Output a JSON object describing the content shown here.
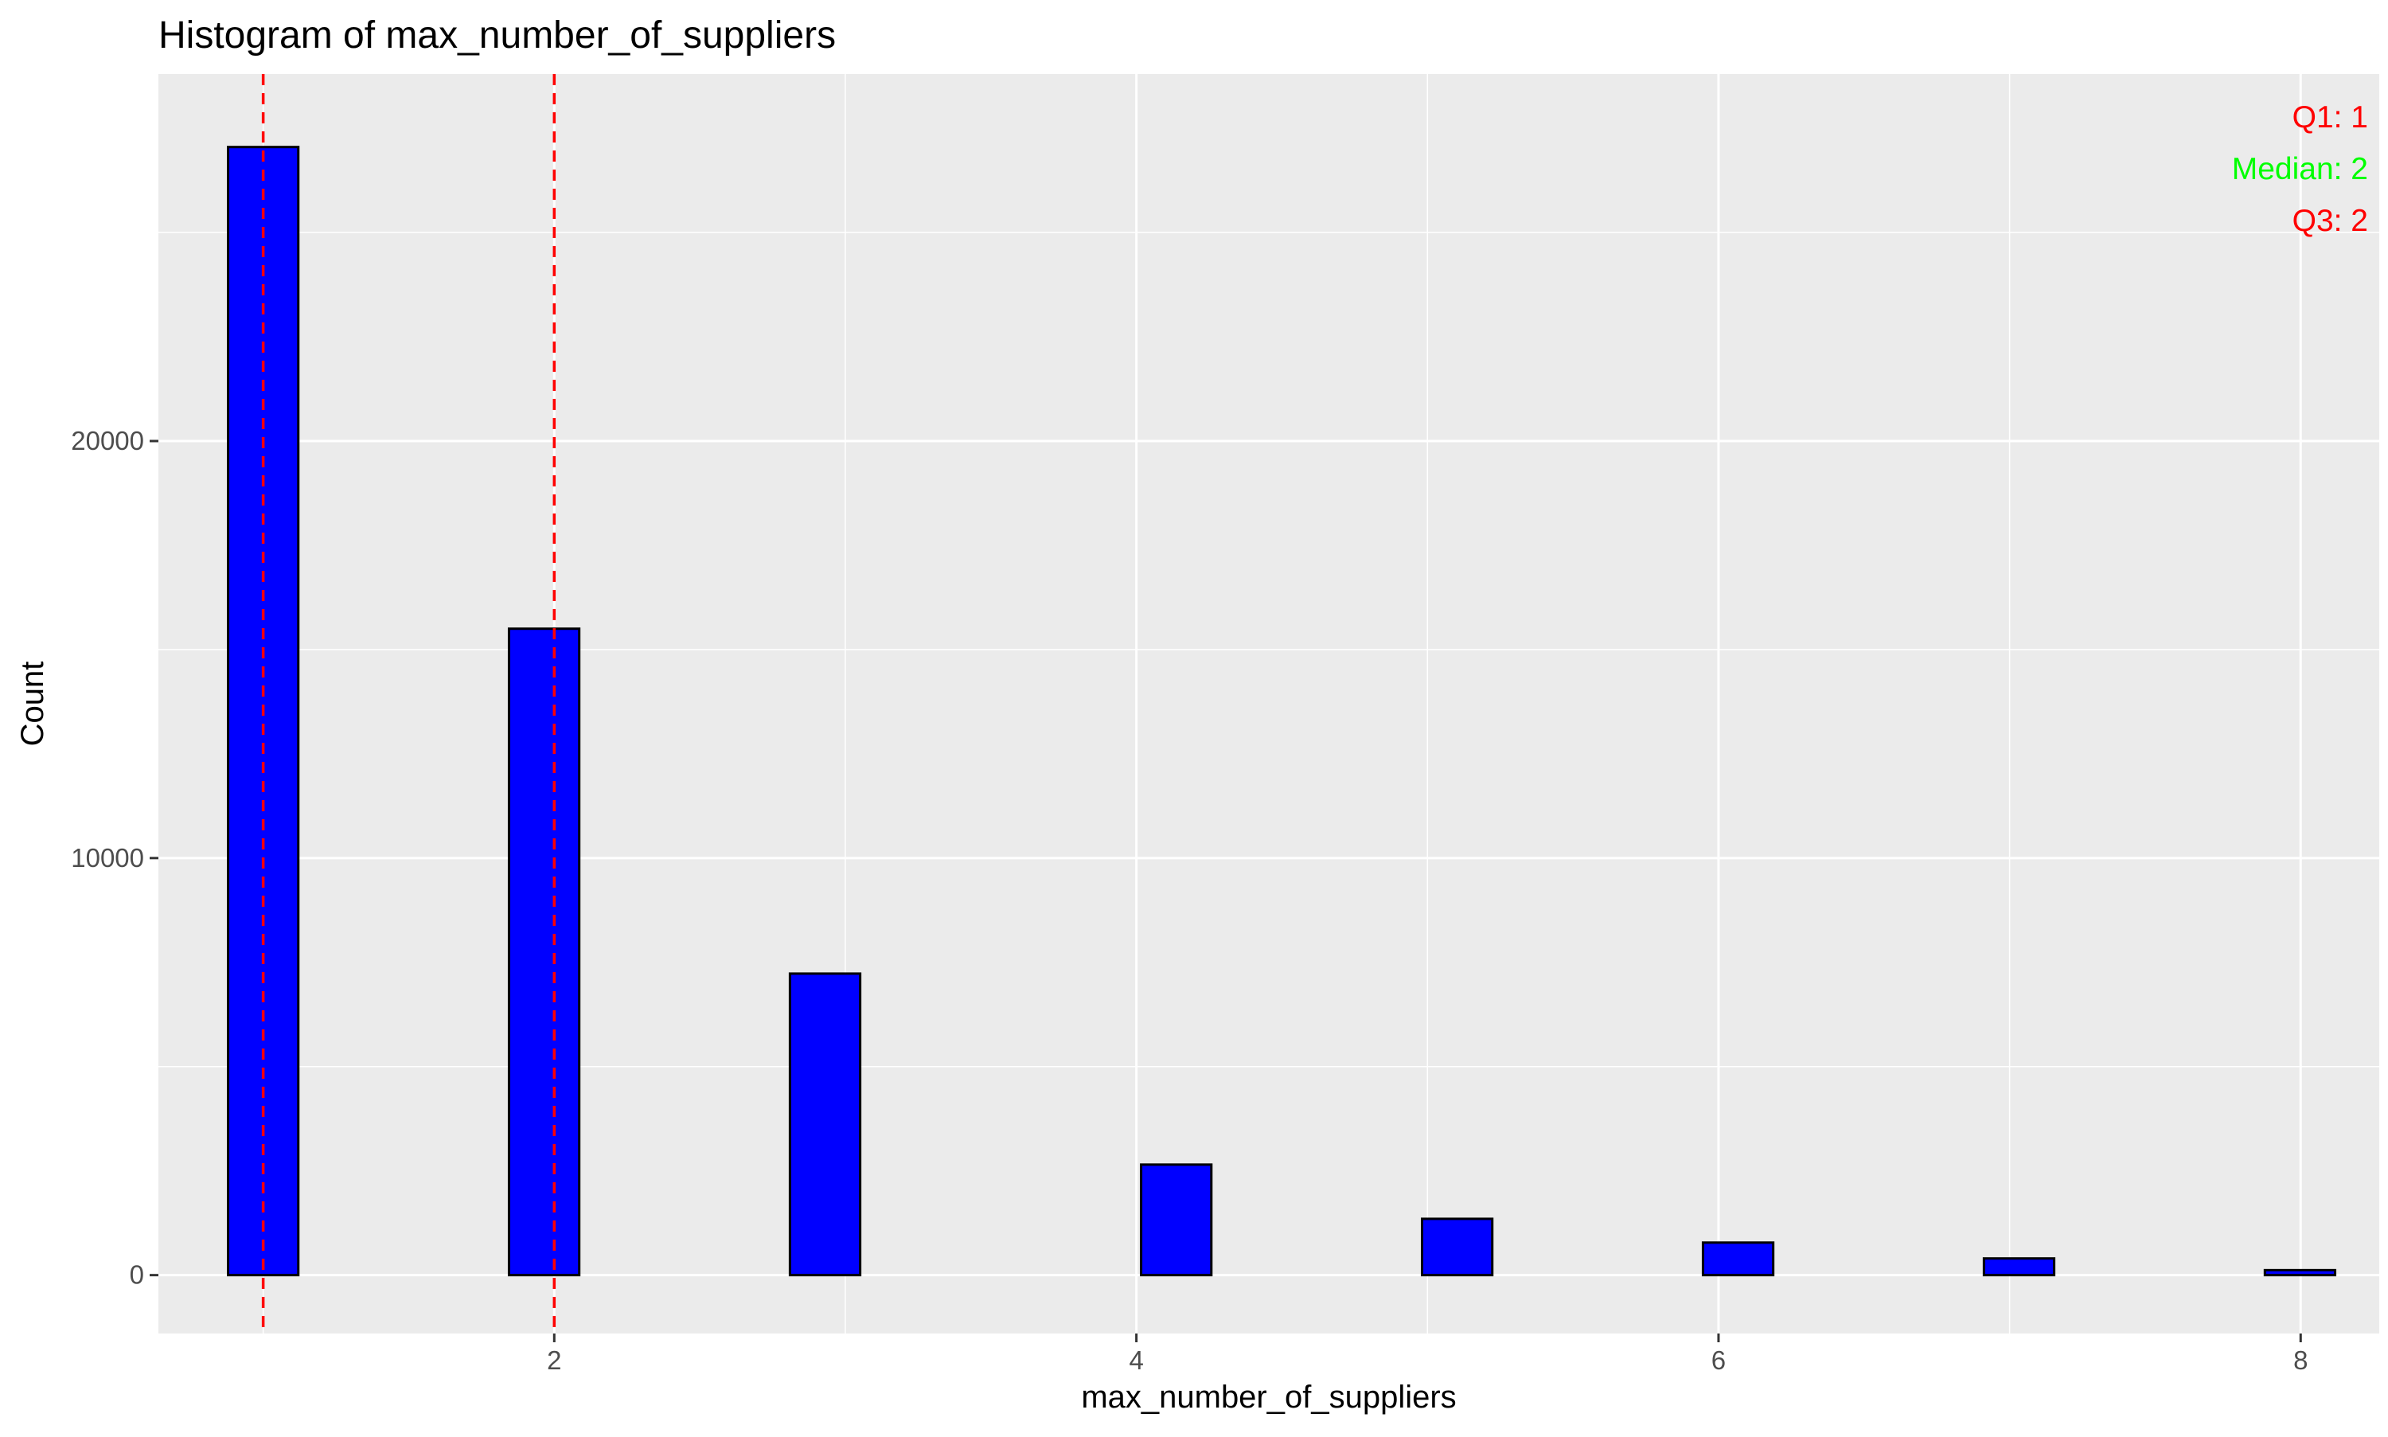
{
  "chart_data": {
    "type": "bar",
    "title": "Histogram of max_number_of_suppliers",
    "xlabel": "max_number_of_suppliers",
    "ylabel": "Count",
    "xlim": [
      0.64,
      8.27
    ],
    "ylim": [
      -1400,
      28800
    ],
    "x_ticks": [
      2,
      4,
      6,
      8
    ],
    "y_ticks": [
      0,
      10000,
      20000
    ],
    "bin_width": 0.2413,
    "bins": [
      {
        "center": 1.0,
        "count": 27050
      },
      {
        "center": 1.9655,
        "count": 15500
      },
      {
        "center": 2.931,
        "count": 7230
      },
      {
        "center": 4.1379,
        "count": 2650
      },
      {
        "center": 5.1034,
        "count": 1350
      },
      {
        "center": 6.069,
        "count": 780
      },
      {
        "center": 7.0345,
        "count": 400
      },
      {
        "center": 8.0,
        "count": 120
      }
    ],
    "bar_fill": "#0000ff",
    "bar_stroke": "#000000",
    "panel_background": "#ebebeb",
    "grid": true,
    "vlines": [
      {
        "x": 1,
        "color": "#ff0000",
        "style": "dashed"
      },
      {
        "x": 2,
        "color": "#ff0000",
        "style": "dashed"
      }
    ],
    "annotations": [
      {
        "text": "Q1: 1",
        "color": "#ff0000"
      },
      {
        "text": "Median: 2",
        "color": "#00ff00"
      },
      {
        "text": "Q3: 2",
        "color": "#ff0000"
      }
    ],
    "annotation_placement": "top-right"
  }
}
